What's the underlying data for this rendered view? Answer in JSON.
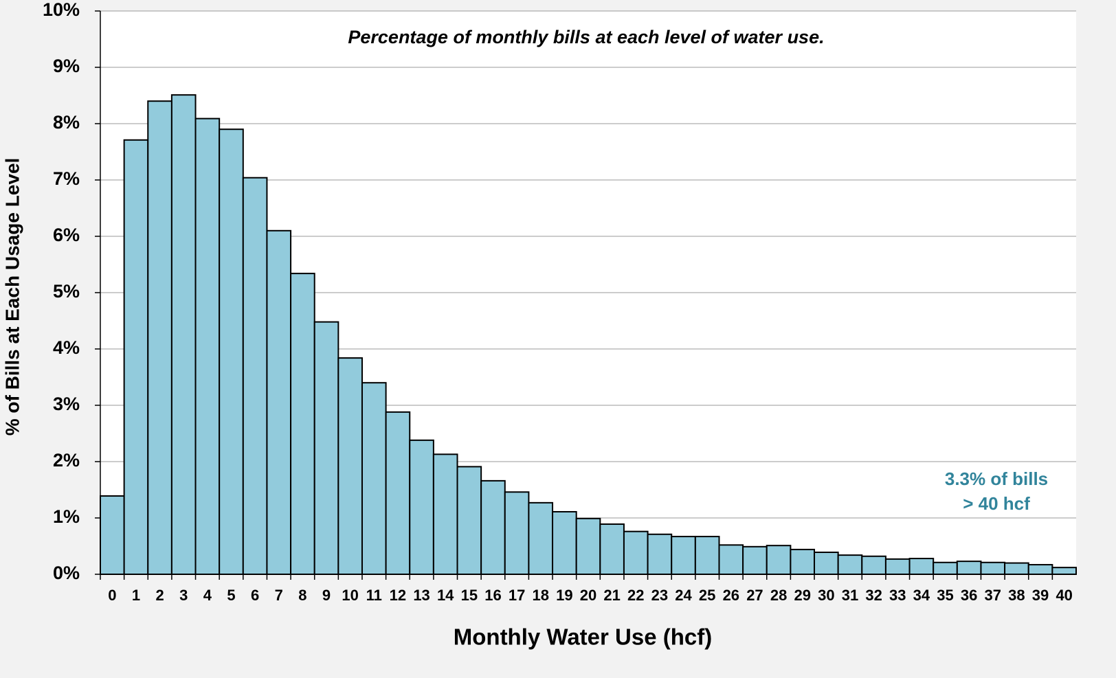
{
  "chart_data": {
    "type": "bar",
    "title": "Percentage of monthly bills at each level of water use.",
    "x_label": "Monthly Water Use (hcf)",
    "y_label": "% of Bills at Each Usage Level",
    "annotation": [
      "3.3% of bills",
      "> 40 hcf"
    ],
    "categories": [
      "0",
      "1",
      "2",
      "3",
      "4",
      "5",
      "6",
      "7",
      "8",
      "9",
      "10",
      "11",
      "12",
      "13",
      "14",
      "15",
      "16",
      "17",
      "18",
      "19",
      "20",
      "21",
      "22",
      "23",
      "24",
      "25",
      "26",
      "27",
      "28",
      "29",
      "30",
      "31",
      "32",
      "33",
      "34",
      "35",
      "36",
      "37",
      "38",
      "39",
      "40"
    ],
    "values": [
      1.39,
      7.71,
      8.4,
      8.51,
      8.09,
      7.9,
      7.04,
      6.1,
      5.34,
      4.48,
      3.84,
      3.4,
      2.88,
      2.38,
      2.13,
      1.91,
      1.66,
      1.46,
      1.27,
      1.11,
      0.99,
      0.89,
      0.76,
      0.71,
      0.67,
      0.67,
      0.52,
      0.49,
      0.51,
      0.44,
      0.39,
      0.34,
      0.32,
      0.27,
      0.28,
      0.21,
      0.23,
      0.21,
      0.2,
      0.17,
      0.12
    ],
    "color": "#92cbdc",
    "ylim": [
      0,
      10
    ],
    "yticks": [
      {
        "value": 0,
        "label": "0%"
      },
      {
        "value": 1,
        "label": "1%"
      },
      {
        "value": 2,
        "label": "2%"
      },
      {
        "value": 3,
        "label": "3%"
      },
      {
        "value": 4,
        "label": "4%"
      },
      {
        "value": 5,
        "label": "5%"
      },
      {
        "value": 6,
        "label": "6%"
      },
      {
        "value": 7,
        "label": "7%"
      },
      {
        "value": 8,
        "label": "8%"
      },
      {
        "value": 9,
        "label": "9%"
      },
      {
        "value": 10,
        "label": "10%"
      }
    ],
    "grid": true
  }
}
